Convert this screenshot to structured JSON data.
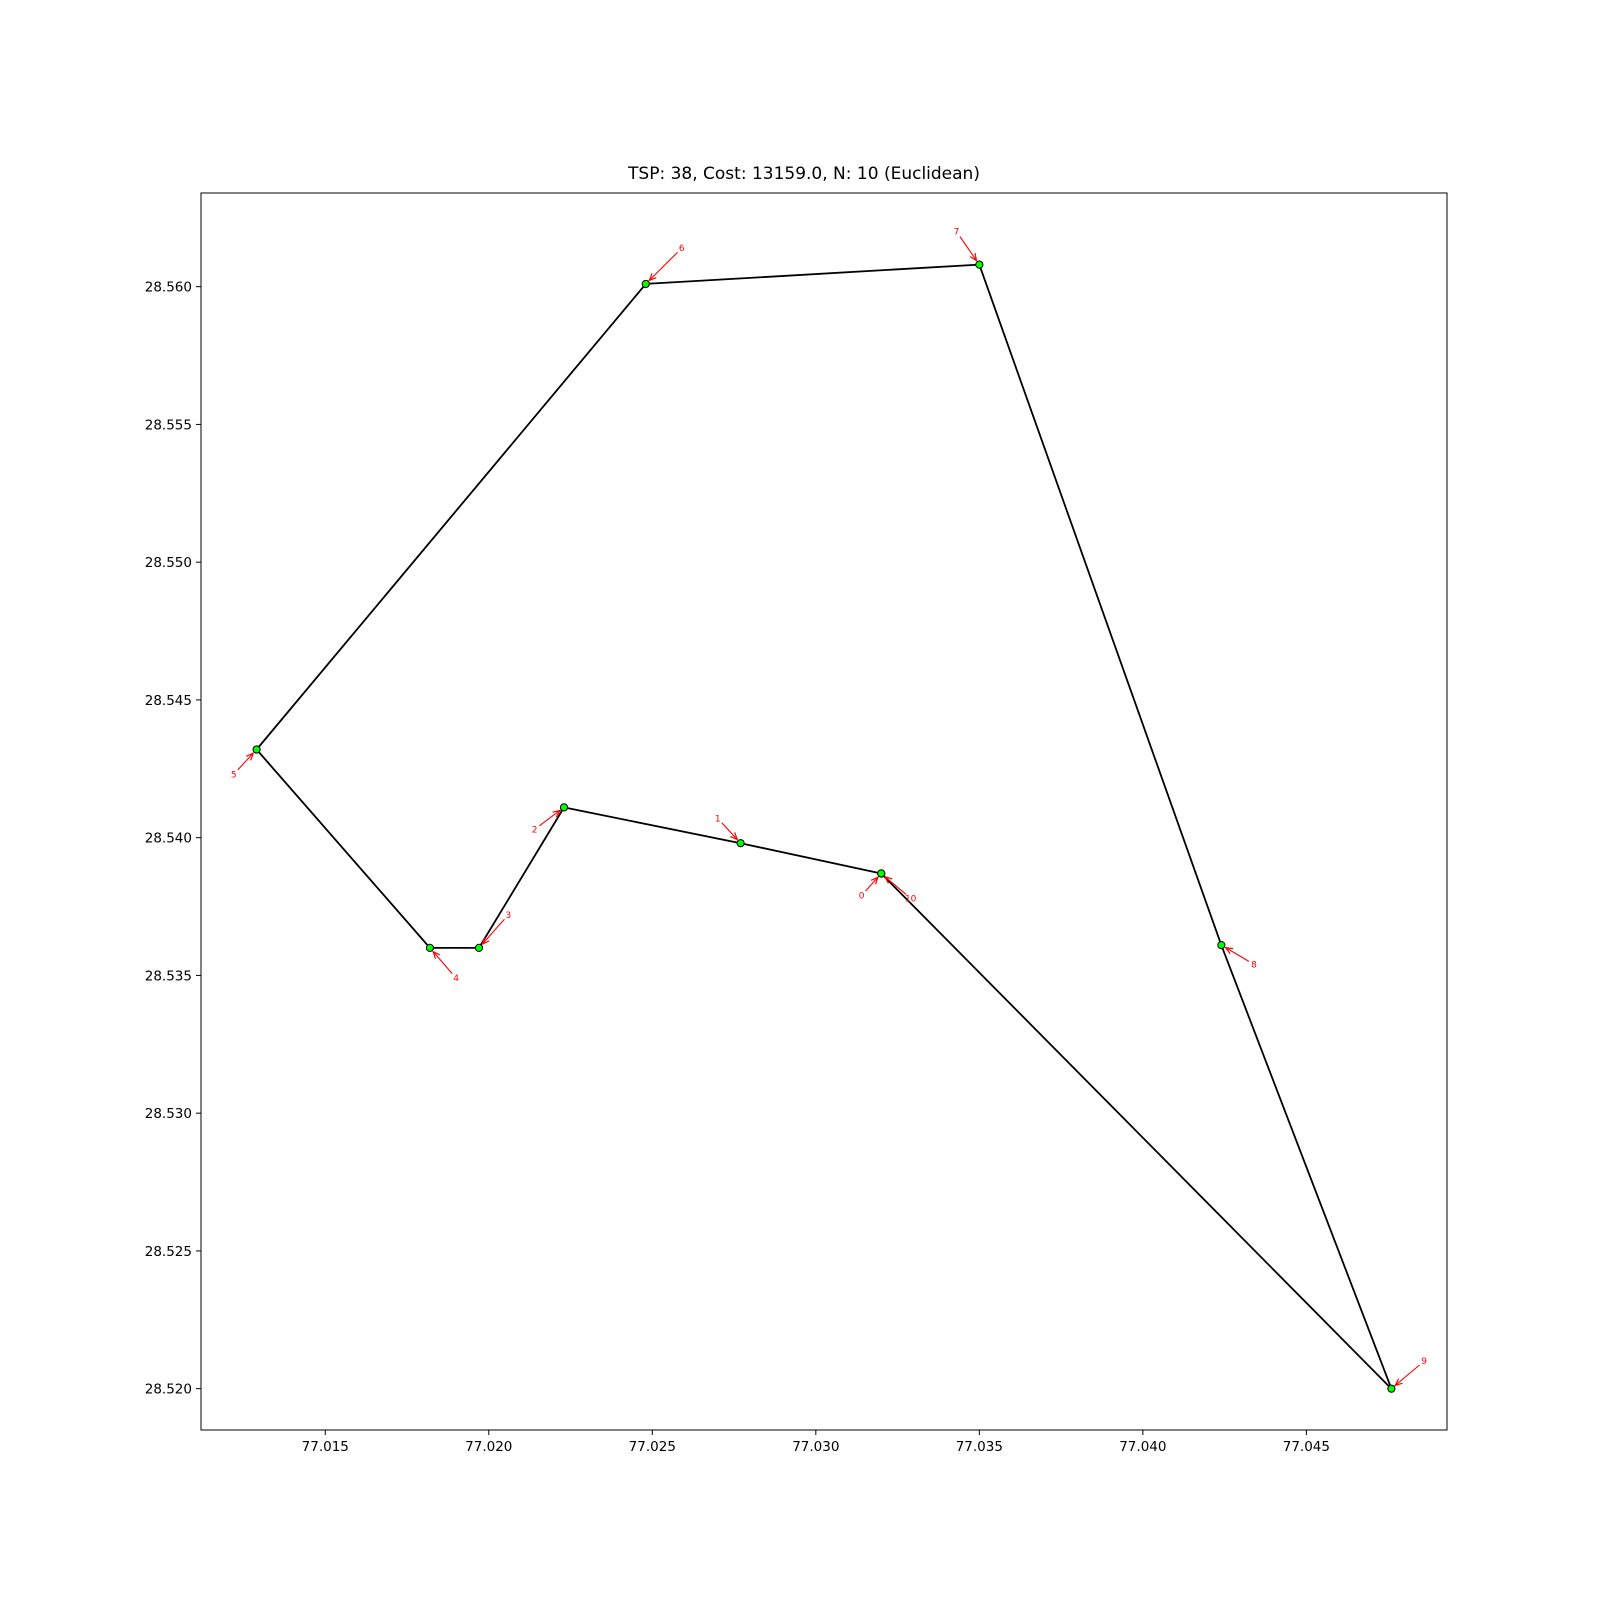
{
  "chart_data": {
    "type": "line",
    "title": "TSP: 38, Cost: 13159.0, N: 10 (Euclidean)",
    "xlabel": "",
    "ylabel": "",
    "xlim": [
      77.0112,
      77.0493
    ],
    "ylim": [
      28.5185,
      28.5634
    ],
    "x_ticks": [
      77.015,
      77.02,
      77.025,
      77.03,
      77.035,
      77.04,
      77.045
    ],
    "x_tick_labels": [
      "77.015",
      "77.020",
      "77.025",
      "77.030",
      "77.035",
      "77.040",
      "77.045"
    ],
    "y_ticks": [
      28.52,
      28.525,
      28.53,
      28.535,
      28.54,
      28.545,
      28.55,
      28.555,
      28.56
    ],
    "y_tick_labels": [
      "28.520",
      "28.525",
      "28.530",
      "28.535",
      "28.540",
      "28.545",
      "28.550",
      "28.555",
      "28.560"
    ],
    "grid": false,
    "legend": "none",
    "colors": {
      "route": "#000000",
      "node_fill": "#00ff00",
      "node_edge": "#000000",
      "annotation": "#ff0000"
    },
    "nodes": [
      {
        "label": "0",
        "x": 77.032,
        "y": 28.5387,
        "text_dx": -0.0006,
        "text_dy": -0.0008
      },
      {
        "label": "1",
        "x": 77.0277,
        "y": 28.5398,
        "text_dx": -0.0007,
        "text_dy": 0.0009
      },
      {
        "label": "2",
        "x": 77.0223,
        "y": 28.5411,
        "text_dx": -0.0009,
        "text_dy": -0.0008
      },
      {
        "label": "3",
        "x": 77.0197,
        "y": 28.536,
        "text_dx": 0.0009,
        "text_dy": 0.0012
      },
      {
        "label": "4",
        "x": 77.0182,
        "y": 28.536,
        "text_dx": 0.0008,
        "text_dy": -0.0011
      },
      {
        "label": "5",
        "x": 77.0129,
        "y": 28.5432,
        "text_dx": -0.0007,
        "text_dy": -0.0009
      },
      {
        "label": "6",
        "x": 77.0248,
        "y": 28.5601,
        "text_dx": 0.0011,
        "text_dy": 0.0013
      },
      {
        "label": "7",
        "x": 77.035,
        "y": 28.5608,
        "text_dx": -0.0007,
        "text_dy": 0.0012
      },
      {
        "label": "8",
        "x": 77.0424,
        "y": 28.5361,
        "text_dx": 0.001,
        "text_dy": -0.0007
      },
      {
        "label": "9",
        "x": 77.0476,
        "y": 28.52,
        "text_dx": 0.001,
        "text_dy": 0.001
      },
      {
        "label": "10",
        "x": 77.032,
        "y": 28.5387,
        "text_dx": 0.0009,
        "text_dy": -0.0009
      }
    ],
    "route_x": [
      77.032,
      77.0277,
      77.0223,
      77.0197,
      77.0182,
      77.0129,
      77.0248,
      77.035,
      77.0424,
      77.0476,
      77.032
    ],
    "route_y": [
      28.5387,
      28.5398,
      28.5411,
      28.536,
      28.536,
      28.5432,
      28.5601,
      28.5608,
      28.5361,
      28.52,
      28.5387
    ]
  }
}
